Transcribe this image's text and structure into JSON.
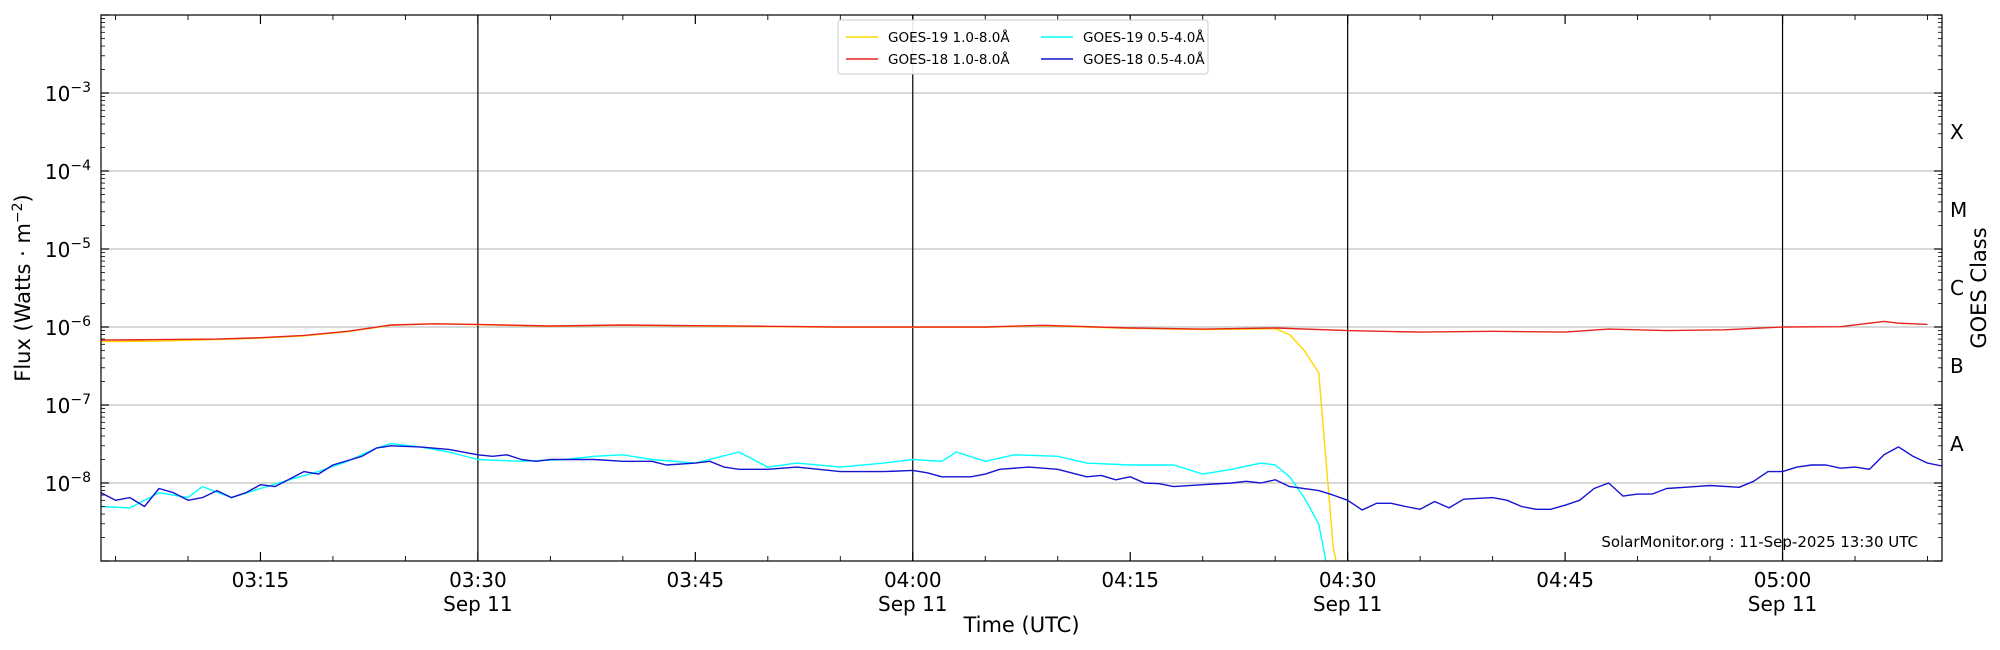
{
  "chart_data": {
    "type": "line",
    "xlabel": "Time (UTC)",
    "ylabel_left": "Flux (Watts · m",
    "ylabel_left_sup": "−2",
    "ylabel_left_end": ")",
    "ylabel_right": "GOES Class",
    "yscale": "log",
    "ylim": [
      1e-09,
      0.01
    ],
    "xlim": [
      "03:04",
      "05:11"
    ],
    "grid": "horizontal",
    "legend_placement": "top-center",
    "credit": "SolarMonitor.org : 11-Sep-2025 13:30 UTC",
    "y_ticks": [
      {
        "value": 1e-08,
        "base": "10",
        "exp": "−8"
      },
      {
        "value": 1e-07,
        "base": "10",
        "exp": "−7"
      },
      {
        "value": 1e-06,
        "base": "10",
        "exp": "−6"
      },
      {
        "value": 1e-05,
        "base": "10",
        "exp": "−5"
      },
      {
        "value": 0.0001,
        "base": "10",
        "exp": "−4"
      },
      {
        "value": 0.001,
        "base": "10",
        "exp": "−3"
      }
    ],
    "x_ticks": [
      {
        "value": "03:15",
        "line1": "03:15",
        "line2": ""
      },
      {
        "value": "03:30",
        "line1": "03:30",
        "line2": "Sep 11"
      },
      {
        "value": "03:45",
        "line1": "03:45",
        "line2": ""
      },
      {
        "value": "04:00",
        "line1": "04:00",
        "line2": "Sep 11"
      },
      {
        "value": "04:15",
        "line1": "04:15",
        "line2": ""
      },
      {
        "value": "04:30",
        "line1": "04:30",
        "line2": "Sep 11"
      },
      {
        "value": "04:45",
        "line1": "04:45",
        "line2": ""
      },
      {
        "value": "05:00",
        "line1": "05:00",
        "line2": "Sep 11"
      }
    ],
    "vertical_lines": [
      "03:30",
      "04:00",
      "04:30",
      "05:00"
    ],
    "goes_classes": [
      {
        "label": "A",
        "flux": 3.16e-08
      },
      {
        "label": "B",
        "flux": 3.16e-07
      },
      {
        "label": "C",
        "flux": 3.16e-06
      },
      {
        "label": "M",
        "flux": 3.16e-05
      },
      {
        "label": "X",
        "flux": 0.000316
      }
    ],
    "colors": {
      "goes19_long": "#FFD700",
      "goes18_long": "#E8231E",
      "goes19_short": "#00FFFF",
      "goes18_short": "#1414D2",
      "grid": "#b0b0b0",
      "vline": "#000000"
    },
    "series": [
      {
        "name": "GOES-19 1.0-8.0Å",
        "color": "#FFD700",
        "points": [
          [
            "03:04",
            6.5e-07
          ],
          [
            "03:08",
            6.6e-07
          ],
          [
            "03:12",
            6.9e-07
          ],
          [
            "03:15",
            7.2e-07
          ],
          [
            "03:18",
            7.7e-07
          ],
          [
            "03:21",
            8.7e-07
          ],
          [
            "03:24",
            1.05e-06
          ],
          [
            "03:27",
            1.1e-06
          ],
          [
            "03:30",
            1.07e-06
          ],
          [
            "03:35",
            1.02e-06
          ],
          [
            "03:40",
            1.05e-06
          ],
          [
            "03:45",
            1.03e-06
          ],
          [
            "03:50",
            1.01e-06
          ],
          [
            "03:55",
            9.9e-07
          ],
          [
            "04:00",
            9.9e-07
          ],
          [
            "04:05",
            9.9e-07
          ],
          [
            "04:09",
            1.04e-06
          ],
          [
            "04:15",
            9.6e-07
          ],
          [
            "04:20",
            9.3e-07
          ],
          [
            "04:25",
            9.5e-07
          ],
          [
            "04:26",
            8e-07
          ],
          [
            "04:27",
            5e-07
          ],
          [
            "04:28",
            2.6e-07
          ],
          [
            "04:29",
            1.5e-09
          ],
          [
            "04:29.2",
            1e-09
          ]
        ]
      },
      {
        "name": "GOES-18 1.0-8.0Å",
        "color": "#E8231E",
        "points": [
          [
            "03:04",
            6.8e-07
          ],
          [
            "03:08",
            6.9e-07
          ],
          [
            "03:12",
            7e-07
          ],
          [
            "03:15",
            7.3e-07
          ],
          [
            "03:18",
            7.8e-07
          ],
          [
            "03:21",
            8.8e-07
          ],
          [
            "03:24",
            1.06e-06
          ],
          [
            "03:27",
            1.1e-06
          ],
          [
            "03:30",
            1.08e-06
          ],
          [
            "03:35",
            1.03e-06
          ],
          [
            "03:40",
            1.06e-06
          ],
          [
            "03:45",
            1.04e-06
          ],
          [
            "03:50",
            1.02e-06
          ],
          [
            "03:55",
            1e-06
          ],
          [
            "04:00",
            1e-06
          ],
          [
            "04:05",
            1e-06
          ],
          [
            "04:09",
            1.05e-06
          ],
          [
            "04:15",
            9.7e-07
          ],
          [
            "04:20",
            9.4e-07
          ],
          [
            "04:25",
            9.7e-07
          ],
          [
            "04:30",
            9e-07
          ],
          [
            "04:35",
            8.6e-07
          ],
          [
            "04:40",
            8.8e-07
          ],
          [
            "04:45",
            8.6e-07
          ],
          [
            "04:48",
            9.4e-07
          ],
          [
            "04:52",
            9e-07
          ],
          [
            "04:56",
            9.2e-07
          ],
          [
            "05:00",
            1e-06
          ],
          [
            "05:04",
            1.01e-06
          ],
          [
            "05:07",
            1.18e-06
          ],
          [
            "05:08",
            1.12e-06
          ],
          [
            "05:10",
            1.08e-06
          ]
        ]
      },
      {
        "name": "GOES-19 0.5-4.0Å",
        "color": "#00FFFF",
        "points": [
          [
            "03:04",
            5e-09
          ],
          [
            "03:06",
            4.8e-09
          ],
          [
            "03:08",
            7.5e-09
          ],
          [
            "03:10",
            6.5e-09
          ],
          [
            "03:11",
            9e-09
          ],
          [
            "03:13",
            6.5e-09
          ],
          [
            "03:15",
            8.5e-09
          ],
          [
            "03:17",
            1.1e-08
          ],
          [
            "03:19",
            1.4e-08
          ],
          [
            "03:21",
            1.9e-08
          ],
          [
            "03:23",
            2.8e-08
          ],
          [
            "03:24",
            3.2e-08
          ],
          [
            "03:26",
            2.9e-08
          ],
          [
            "03:28",
            2.5e-08
          ],
          [
            "03:30",
            2e-08
          ],
          [
            "03:33",
            1.9e-08
          ],
          [
            "03:36",
            2e-08
          ],
          [
            "03:38",
            2.2e-08
          ],
          [
            "03:40",
            2.3e-08
          ],
          [
            "03:42",
            2e-08
          ],
          [
            "03:45",
            1.8e-08
          ],
          [
            "03:48",
            2.5e-08
          ],
          [
            "03:50",
            1.6e-08
          ],
          [
            "03:52",
            1.8e-08
          ],
          [
            "03:55",
            1.6e-08
          ],
          [
            "03:58",
            1.8e-08
          ],
          [
            "04:00",
            2e-08
          ],
          [
            "04:02",
            1.9e-08
          ],
          [
            "04:03",
            2.5e-08
          ],
          [
            "04:05",
            1.9e-08
          ],
          [
            "04:07",
            2.3e-08
          ],
          [
            "04:10",
            2.2e-08
          ],
          [
            "04:12",
            1.8e-08
          ],
          [
            "04:15",
            1.7e-08
          ],
          [
            "04:18",
            1.7e-08
          ],
          [
            "04:20",
            1.3e-08
          ],
          [
            "04:22",
            1.5e-08
          ],
          [
            "04:24",
            1.8e-08
          ],
          [
            "04:25",
            1.7e-08
          ],
          [
            "04:26",
            1.2e-08
          ],
          [
            "04:27",
            6.5e-09
          ],
          [
            "04:28",
            3e-09
          ],
          [
            "04:28.5",
            1e-09
          ]
        ]
      },
      {
        "name": "GOES-18 0.5-4.0Å",
        "color": "#1414D2",
        "points": [
          [
            "03:04",
            7.5e-09
          ],
          [
            "03:05",
            6e-09
          ],
          [
            "03:06",
            6.5e-09
          ],
          [
            "03:07",
            5e-09
          ],
          [
            "03:08",
            8.5e-09
          ],
          [
            "03:09",
            7.5e-09
          ],
          [
            "03:10",
            6e-09
          ],
          [
            "03:11",
            6.5e-09
          ],
          [
            "03:12",
            8e-09
          ],
          [
            "03:13",
            6.5e-09
          ],
          [
            "03:14",
            7.5e-09
          ],
          [
            "03:15",
            9.5e-09
          ],
          [
            "03:16",
            9e-09
          ],
          [
            "03:18",
            1.4e-08
          ],
          [
            "03:19",
            1.3e-08
          ],
          [
            "03:20",
            1.7e-08
          ],
          [
            "03:22",
            2.2e-08
          ],
          [
            "03:23",
            2.8e-08
          ],
          [
            "03:24",
            3e-08
          ],
          [
            "03:26",
            2.9e-08
          ],
          [
            "03:28",
            2.7e-08
          ],
          [
            "03:30",
            2.3e-08
          ],
          [
            "03:31",
            2.2e-08
          ],
          [
            "03:32",
            2.3e-08
          ],
          [
            "03:33",
            2e-08
          ],
          [
            "03:34",
            1.9e-08
          ],
          [
            "03:35",
            2e-08
          ],
          [
            "03:38",
            2e-08
          ],
          [
            "03:40",
            1.9e-08
          ],
          [
            "03:42",
            1.9e-08
          ],
          [
            "03:43",
            1.7e-08
          ],
          [
            "03:45",
            1.8e-08
          ],
          [
            "03:46",
            1.9e-08
          ],
          [
            "03:47",
            1.6e-08
          ],
          [
            "03:48",
            1.5e-08
          ],
          [
            "03:50",
            1.5e-08
          ],
          [
            "03:52",
            1.6e-08
          ],
          [
            "03:55",
            1.4e-08
          ],
          [
            "03:58",
            1.4e-08
          ],
          [
            "04:00",
            1.45e-08
          ],
          [
            "04:01",
            1.35e-08
          ],
          [
            "04:02",
            1.2e-08
          ],
          [
            "04:04",
            1.2e-08
          ],
          [
            "04:05",
            1.3e-08
          ],
          [
            "04:06",
            1.5e-08
          ],
          [
            "04:08",
            1.6e-08
          ],
          [
            "04:10",
            1.5e-08
          ],
          [
            "04:12",
            1.2e-08
          ],
          [
            "04:13",
            1.25e-08
          ],
          [
            "04:14",
            1.1e-08
          ],
          [
            "04:15",
            1.2e-08
          ],
          [
            "04:16",
            1e-08
          ],
          [
            "04:17",
            9.8e-09
          ],
          [
            "04:18",
            9e-09
          ],
          [
            "04:20",
            9.5e-09
          ],
          [
            "04:22",
            1e-08
          ],
          [
            "04:23",
            1.05e-08
          ],
          [
            "04:24",
            1e-08
          ],
          [
            "04:25",
            1.1e-08
          ],
          [
            "04:26",
            9e-09
          ],
          [
            "04:28",
            8e-09
          ],
          [
            "04:29",
            7e-09
          ],
          [
            "04:30",
            6e-09
          ],
          [
            "04:31",
            4.5e-09
          ],
          [
            "04:32",
            5.5e-09
          ],
          [
            "04:33",
            5.5e-09
          ],
          [
            "04:34",
            5e-09
          ],
          [
            "04:35",
            4.6e-09
          ],
          [
            "04:36",
            5.8e-09
          ],
          [
            "04:37",
            4.8e-09
          ],
          [
            "04:38",
            6.2e-09
          ],
          [
            "04:40",
            6.5e-09
          ],
          [
            "04:41",
            6e-09
          ],
          [
            "04:42",
            5e-09
          ],
          [
            "04:43",
            4.6e-09
          ],
          [
            "04:44",
            4.6e-09
          ],
          [
            "04:45",
            5.2e-09
          ],
          [
            "04:46",
            6e-09
          ],
          [
            "04:47",
            8.5e-09
          ],
          [
            "04:48",
            1e-08
          ],
          [
            "04:49",
            6.8e-09
          ],
          [
            "04:50",
            7.2e-09
          ],
          [
            "04:51",
            7.2e-09
          ],
          [
            "04:52",
            8.5e-09
          ],
          [
            "04:54",
            9e-09
          ],
          [
            "04:55",
            9.3e-09
          ],
          [
            "04:57",
            8.8e-09
          ],
          [
            "04:58",
            1.05e-08
          ],
          [
            "04:59",
            1.4e-08
          ],
          [
            "05:00",
            1.4e-08
          ],
          [
            "05:01",
            1.6e-08
          ],
          [
            "05:02",
            1.7e-08
          ],
          [
            "05:03",
            1.7e-08
          ],
          [
            "05:04",
            1.55e-08
          ],
          [
            "05:05",
            1.6e-08
          ],
          [
            "05:06",
            1.5e-08
          ],
          [
            "05:07",
            2.3e-08
          ],
          [
            "05:08",
            2.9e-08
          ],
          [
            "05:09",
            2.2e-08
          ],
          [
            "05:10",
            1.8e-08
          ],
          [
            "05:11",
            1.65e-08
          ]
        ]
      }
    ]
  }
}
